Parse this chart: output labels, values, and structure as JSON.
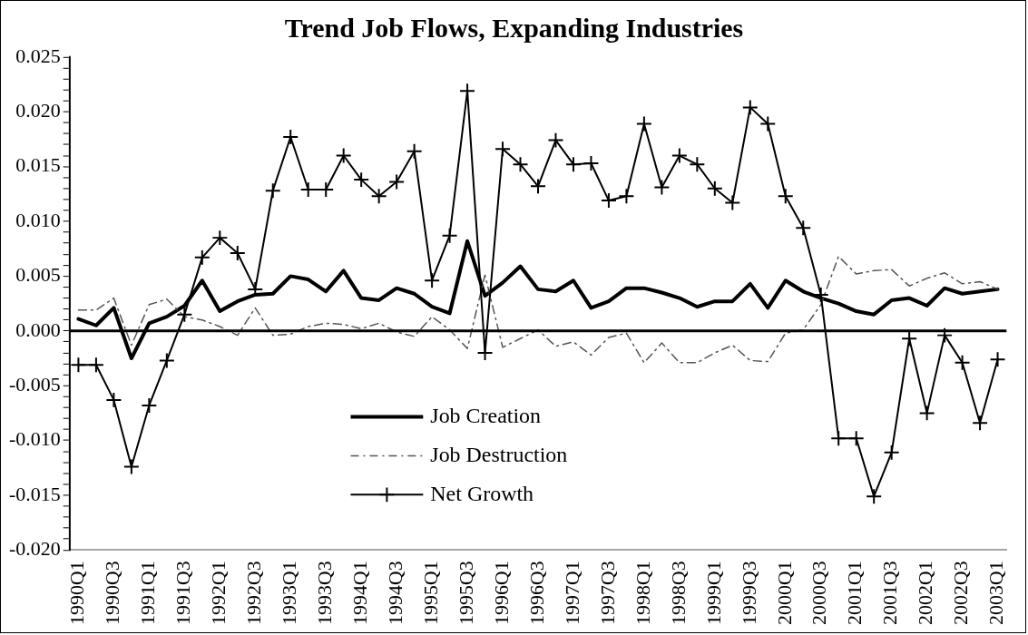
{
  "chart_data": {
    "type": "line",
    "title": "Trend Job Flows, Expanding Industries",
    "categories": [
      "1990Q1",
      null,
      "1990Q3",
      null,
      "1991Q1",
      null,
      "1991Q3",
      null,
      "1992Q1",
      null,
      "1992Q3",
      null,
      "1993Q1",
      null,
      "1993Q3",
      null,
      "1994Q1",
      null,
      "1994Q3",
      null,
      "1995Q1",
      null,
      "1995Q3",
      null,
      "1996Q1",
      null,
      "1996Q3",
      null,
      "1997Q1",
      null,
      "1997Q3",
      null,
      "1998Q1",
      null,
      "1998Q3",
      null,
      "1999Q1",
      null,
      "1999Q3",
      null,
      "2000Q1",
      null,
      "2000Q3",
      null,
      "2001Q1",
      null,
      "2001Q3",
      null,
      "2002Q1",
      null,
      "2002Q3",
      null,
      "2003Q1"
    ],
    "series": [
      {
        "name": "Job Creation",
        "color": "#000000",
        "line_style": "solid",
        "marker": "none",
        "values": [
          0.0011,
          0.0005,
          0.0021,
          -0.0025,
          0.0007,
          0.0013,
          0.0023,
          0.0046,
          0.0018,
          0.0027,
          0.0033,
          0.0034,
          0.005,
          0.0047,
          0.0036,
          0.0055,
          0.003,
          0.0028,
          0.0039,
          0.0034,
          0.0022,
          0.0016,
          0.0082,
          0.0032,
          0.0044,
          0.0059,
          0.0038,
          0.0036,
          0.0046,
          0.0021,
          0.0027,
          0.0039,
          0.0039,
          0.0035,
          0.003,
          0.0022,
          0.0027,
          0.0027,
          0.0043,
          0.0021,
          0.0046,
          0.0036,
          0.003,
          0.0025,
          0.0018,
          0.0015,
          0.0028,
          0.003,
          0.0023,
          0.0039,
          0.0034,
          0.0036,
          0.0038
        ]
      },
      {
        "name": "Job Destruction",
        "color": "#555555",
        "line_style": "dashed",
        "marker": "none",
        "values": [
          0.0019,
          0.0019,
          0.003,
          -0.0013,
          0.0024,
          0.0029,
          0.0013,
          0.001,
          0.0004,
          -0.0004,
          0.0021,
          -0.0004,
          -0.0003,
          0.0004,
          0.0007,
          0.0006,
          0.0002,
          0.0007,
          -0.0001,
          -0.0005,
          0.0013,
          0.0001,
          -0.0016,
          0.0051,
          -0.0015,
          -0.0007,
          0.0001,
          -0.0014,
          -0.001,
          -0.0022,
          -0.0006,
          -0.0002,
          -0.0029,
          -0.0011,
          -0.0029,
          -0.0029,
          -0.002,
          -0.0013,
          -0.0027,
          -0.0028,
          -0.0002,
          0.0001,
          0.0024,
          0.0068,
          0.0052,
          0.0055,
          0.0056,
          0.0041,
          0.0048,
          0.0053,
          0.0043,
          0.0045,
          0.0038
        ]
      },
      {
        "name": "Net Growth",
        "color": "#000000",
        "line_style": "solid",
        "marker": "cross",
        "values": [
          -0.0031,
          -0.0031,
          -0.0063,
          -0.0124,
          -0.0068,
          -0.0027,
          0.0015,
          0.0067,
          0.0085,
          0.0071,
          0.0038,
          0.0128,
          0.0177,
          0.0129,
          0.0129,
          0.016,
          0.0138,
          0.0123,
          0.0136,
          0.0164,
          0.0046,
          0.0087,
          0.0219,
          -0.002,
          0.0166,
          0.0152,
          0.0132,
          0.0174,
          0.0152,
          0.0153,
          0.0119,
          0.0123,
          0.0189,
          0.0131,
          0.016,
          0.0152,
          0.013,
          0.0117,
          0.0204,
          0.0189,
          0.0123,
          0.0094,
          0.0033,
          -0.0098,
          -0.0098,
          -0.0151,
          -0.0111,
          -0.0007,
          -0.0075,
          -0.0004,
          -0.0029,
          -0.0084,
          -0.0026
        ]
      }
    ],
    "ylim": [
      -0.02,
      0.025
    ],
    "yticks": [
      {
        "value": -0.02,
        "label": "-0.020"
      },
      {
        "value": -0.019,
        "label": null
      },
      {
        "value": -0.018,
        "label": null
      },
      {
        "value": -0.017,
        "label": null
      },
      {
        "value": -0.016,
        "label": null
      },
      {
        "value": -0.015,
        "label": "-0.015"
      },
      {
        "value": -0.014,
        "label": null
      },
      {
        "value": -0.013,
        "label": null
      },
      {
        "value": -0.012,
        "label": null
      },
      {
        "value": -0.011,
        "label": null
      },
      {
        "value": -0.01,
        "label": "-0.010"
      },
      {
        "value": -0.009,
        "label": null
      },
      {
        "value": -0.008,
        "label": null
      },
      {
        "value": -0.007,
        "label": null
      },
      {
        "value": -0.006,
        "label": null
      },
      {
        "value": -0.005,
        "label": "-0.005"
      },
      {
        "value": -0.004,
        "label": null
      },
      {
        "value": -0.003,
        "label": null
      },
      {
        "value": -0.002,
        "label": null
      },
      {
        "value": -0.001,
        "label": null
      },
      {
        "value": 0,
        "label": "0.000"
      },
      {
        "value": 0.001,
        "label": null
      },
      {
        "value": 0.002,
        "label": null
      },
      {
        "value": 0.003,
        "label": null
      },
      {
        "value": 0.004,
        "label": null
      },
      {
        "value": 0.005,
        "label": "0.005"
      },
      {
        "value": 0.006,
        "label": null
      },
      {
        "value": 0.007,
        "label": null
      },
      {
        "value": 0.008,
        "label": null
      },
      {
        "value": 0.009,
        "label": null
      },
      {
        "value": 0.01,
        "label": "0.010"
      },
      {
        "value": 0.011,
        "label": null
      },
      {
        "value": 0.012,
        "label": null
      },
      {
        "value": 0.013,
        "label": null
      },
      {
        "value": 0.014,
        "label": null
      },
      {
        "value": 0.015,
        "label": "0.015"
      },
      {
        "value": 0.016,
        "label": null
      },
      {
        "value": 0.017,
        "label": null
      },
      {
        "value": 0.018,
        "label": null
      },
      {
        "value": 0.019,
        "label": null
      },
      {
        "value": 0.02,
        "label": "0.020"
      },
      {
        "value": 0.021,
        "label": null
      },
      {
        "value": 0.022,
        "label": null
      },
      {
        "value": 0.023,
        "label": null
      },
      {
        "value": 0.024,
        "label": null
      },
      {
        "value": 0.025,
        "label": "0.025"
      }
    ],
    "ref_lines": [
      {
        "axis": "y",
        "value": 0,
        "color": "#000000"
      }
    ],
    "legend": "bottom"
  }
}
